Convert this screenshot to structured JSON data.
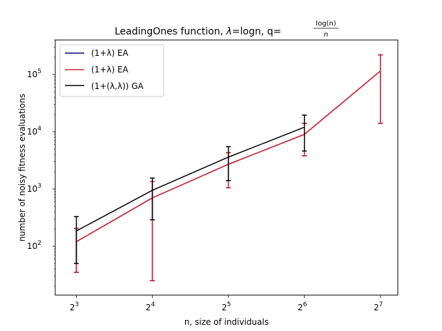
{
  "chart_data": {
    "type": "line",
    "title": "LeadingOnes function, λ=logn, q=log(n)/n",
    "title_parts": {
      "prefix": "LeadingOnes function, ",
      "lambda": "λ",
      "middle": "=logn, q=",
      "frac_num": "log(n)",
      "frac_den": "n"
    },
    "xlabel": "n, size of individuals",
    "ylabel": "number of noisy fitness evaluations",
    "x_scale": "log2",
    "y_scale": "log10",
    "xlim": [
      6.6,
      150
    ],
    "ylim": [
      14,
      400000
    ],
    "x_ticks": [
      {
        "value": 8,
        "base": "2",
        "exp": "3"
      },
      {
        "value": 16,
        "base": "2",
        "exp": "4"
      },
      {
        "value": 32,
        "base": "2",
        "exp": "5"
      },
      {
        "value": 64,
        "base": "2",
        "exp": "6"
      },
      {
        "value": 128,
        "base": "2",
        "exp": "7"
      }
    ],
    "y_ticks": [
      {
        "value": 100,
        "base": "10",
        "exp": "2"
      },
      {
        "value": 1000,
        "base": "10",
        "exp": "3"
      },
      {
        "value": 10000,
        "base": "10",
        "exp": "4"
      },
      {
        "value": 100000,
        "base": "10",
        "exp": "5"
      }
    ],
    "grid": false,
    "legend_position": "top-left",
    "series": [
      {
        "name": "(1+λ) EA",
        "color": "#000080",
        "x": [
          8,
          16,
          32,
          64,
          128
        ],
        "y": [
          120,
          700,
          2700,
          9000,
          115000
        ],
        "err_low": [
          35,
          25,
          1050,
          3800,
          14000
        ],
        "err_high": [
          205,
          1350,
          4300,
          14000,
          220000
        ]
      },
      {
        "name": "(1+λ) EA",
        "color": "#d62728",
        "x": [
          8,
          16,
          32,
          64,
          128
        ],
        "y": [
          120,
          700,
          2700,
          9000,
          115000
        ],
        "err_low": [
          35,
          25,
          1050,
          3800,
          14000
        ],
        "err_high": [
          205,
          1350,
          4300,
          14000,
          220000
        ]
      },
      {
        "name": "(1+(λ,λ)) GA",
        "color": "#000000",
        "x": [
          8,
          16,
          32,
          64
        ],
        "y": [
          185,
          950,
          3600,
          12000
        ],
        "err_low": [
          50,
          290,
          1400,
          4600
        ],
        "err_high": [
          330,
          1550,
          5500,
          19500
        ]
      }
    ]
  }
}
